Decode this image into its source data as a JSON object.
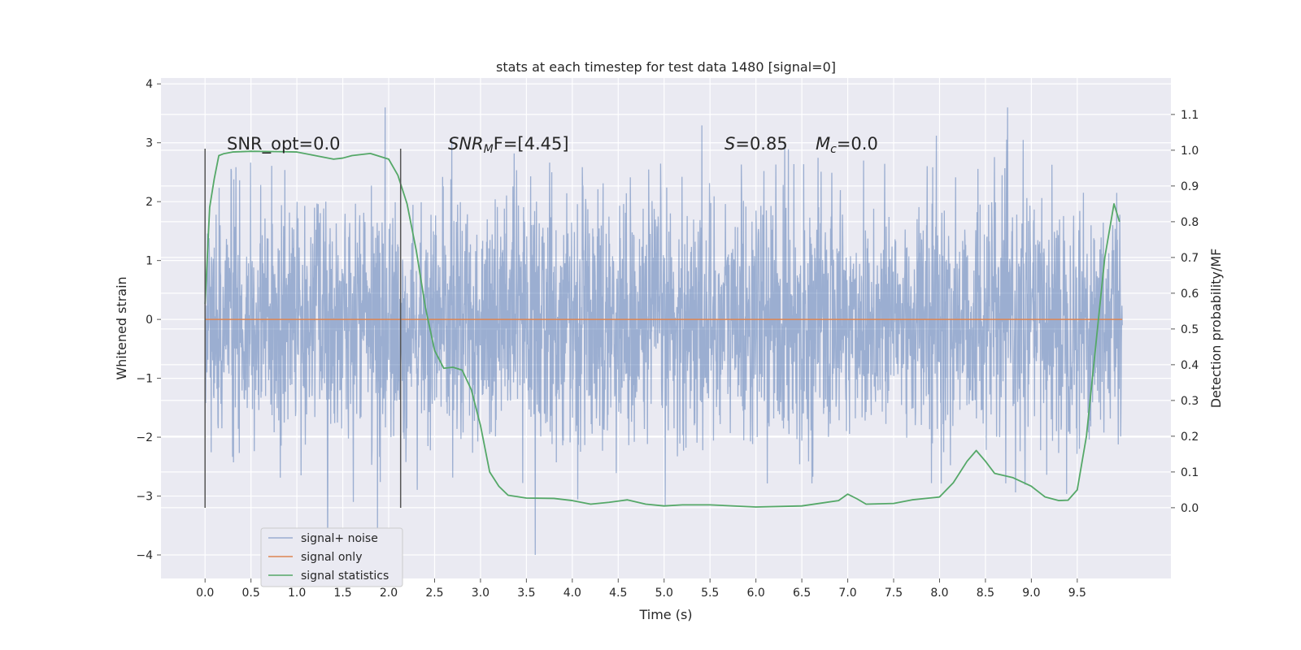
{
  "chart_data": {
    "type": "line",
    "title": "stats at each timestep for test data 1480 [signal=0]",
    "xlabel": "Time (s)",
    "ylabel": "Whitened strain",
    "y2label": "Detection probability/MF",
    "xlim": [
      -0.48,
      10.52
    ],
    "ylim": [
      -4.4,
      4.1
    ],
    "y2lim": [
      -0.198,
      1.202
    ],
    "x_ticks": [
      "0.0",
      "0.5",
      "1.0",
      "1.5",
      "2.0",
      "2.5",
      "3.0",
      "3.5",
      "4.0",
      "4.5",
      "5.0",
      "5.5",
      "6.0",
      "6.5",
      "7.0",
      "7.5",
      "8.0",
      "8.5",
      "9.0",
      "9.5"
    ],
    "y_ticks": [
      "4",
      "3",
      "2",
      "1",
      "0",
      "−1",
      "−2",
      "−3",
      "−4"
    ],
    "y2_ticks": [
      "1.1",
      "1.0",
      "0.9",
      "0.8",
      "0.7",
      "0.6",
      "0.5",
      "0.4",
      "0.3",
      "0.2",
      "0.1",
      "0.0"
    ],
    "grid": true,
    "legend_position": "lower-left",
    "annotations": {
      "snr_opt": "SNR_opt=0.0",
      "snr_mf_prefix": "SNR",
      "snr_mf_sub": "M",
      "snr_mf_suffix": "F=[4.45]",
      "s_sym": "S",
      "s_val": "=0.85",
      "mc_sym": "M",
      "mc_sub": "c",
      "mc_val": "=0.0"
    },
    "vertical_markers_x": [
      0.0,
      2.13
    ],
    "vertical_markers_yrange": [
      -3.2,
      2.9
    ],
    "series": [
      {
        "name": "signal+ noise",
        "color": "#4c72b0",
        "opacity": 0.5,
        "style": "dense whitened-noise trace, roughly ±1.3 core with spikes to about ±3.5",
        "x_range": [
          0.0,
          9.99
        ]
      },
      {
        "name": "signal only",
        "color": "#dd8452",
        "x": [
          0.0,
          9.99
        ],
        "y": [
          0.0,
          0.0
        ]
      },
      {
        "name": "signal statistics",
        "color": "#55a868",
        "axis": "right",
        "x": [
          0.0,
          0.05,
          0.1,
          0.15,
          0.2,
          0.3,
          0.5,
          0.8,
          1.0,
          1.2,
          1.4,
          1.5,
          1.6,
          1.8,
          2.0,
          2.1,
          2.2,
          2.3,
          2.4,
          2.5,
          2.6,
          2.7,
          2.8,
          2.9,
          3.0,
          3.1,
          3.2,
          3.3,
          3.5,
          3.8,
          4.0,
          4.2,
          4.4,
          4.6,
          4.8,
          5.0,
          5.2,
          5.5,
          6.0,
          6.5,
          6.9,
          7.0,
          7.1,
          7.2,
          7.5,
          7.7,
          8.0,
          8.15,
          8.3,
          8.4,
          8.5,
          8.6,
          8.8,
          9.0,
          9.15,
          9.3,
          9.4,
          9.5,
          9.6,
          9.7,
          9.8,
          9.9,
          9.96
        ],
        "y": [
          0.57,
          0.84,
          0.92,
          0.985,
          0.99,
          0.995,
          0.997,
          0.996,
          0.995,
          0.985,
          0.975,
          0.978,
          0.985,
          0.991,
          0.975,
          0.93,
          0.85,
          0.72,
          0.56,
          0.44,
          0.39,
          0.393,
          0.385,
          0.33,
          0.23,
          0.1,
          0.06,
          0.035,
          0.027,
          0.026,
          0.02,
          0.01,
          0.015,
          0.022,
          0.01,
          0.005,
          0.008,
          0.008,
          0.002,
          0.005,
          0.02,
          0.038,
          0.025,
          0.01,
          0.012,
          0.022,
          0.03,
          0.07,
          0.13,
          0.16,
          0.13,
          0.096,
          0.084,
          0.06,
          0.03,
          0.02,
          0.021,
          0.05,
          0.2,
          0.45,
          0.7,
          0.85,
          0.8
        ]
      }
    ]
  }
}
